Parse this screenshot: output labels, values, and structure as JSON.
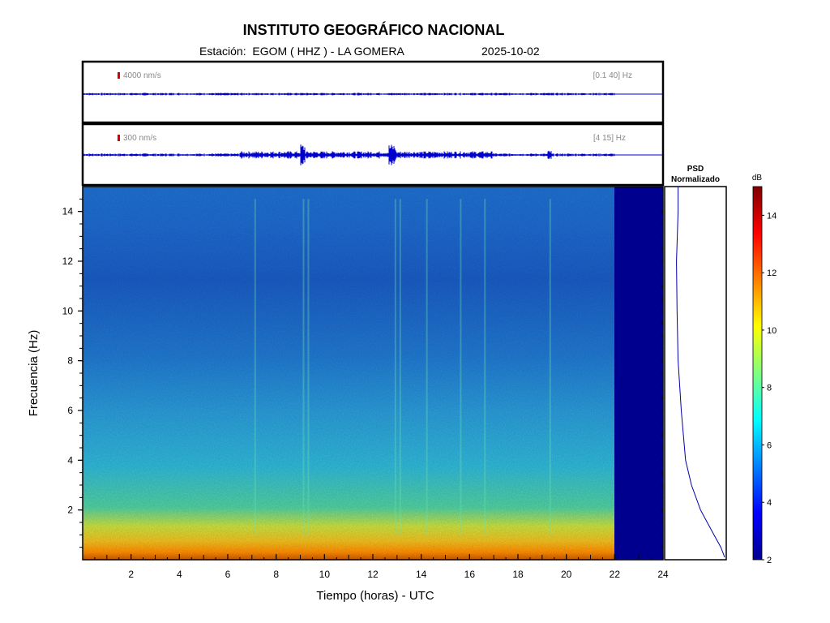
{
  "header": {
    "title": "INSTITUTO GEOGRÁFICO NACIONAL",
    "station": "Estación:  EGOM ( HHZ ) - LA GOMERA",
    "date": "2025-10-02"
  },
  "traces": [
    {
      "scale_label": "4000 nm/s",
      "band_label": "[0.1 40] Hz",
      "color": "#0000cc",
      "scale_bar_color": "#dd0000"
    },
    {
      "scale_label": "300 nm/s",
      "band_label": "[4 15] Hz",
      "color": "#0000cc",
      "scale_bar_color": "#dd0000"
    }
  ],
  "psd_panel": {
    "title_line1": "PSD",
    "title_line2": "Normalizado"
  },
  "colorbar": {
    "unit": "dB",
    "ticks": [
      "2",
      "4",
      "6",
      "8",
      "10",
      "12",
      "14"
    ],
    "range": [
      2,
      15
    ]
  },
  "chart_data": {
    "type": "heatmap",
    "title": "INSTITUTO GEOGRÁFICO NACIONAL",
    "xlabel": "Tiempo (horas) - UTC",
    "ylabel": "Frecuencia  (Hz)",
    "xlim": [
      0,
      24
    ],
    "ylim": [
      0,
      15
    ],
    "x_ticks": [
      2,
      4,
      6,
      8,
      10,
      12,
      14,
      16,
      18,
      20,
      22,
      24
    ],
    "y_ticks": [
      2,
      4,
      6,
      8,
      10,
      12,
      14
    ],
    "data_end_hour": 22,
    "colormap": "jet",
    "approx_db_by_frequency": [
      {
        "freq_hz": 0.3,
        "db": 11.5
      },
      {
        "freq_hz": 1,
        "db": 9.5
      },
      {
        "freq_hz": 2,
        "db": 8.0
      },
      {
        "freq_hz": 3,
        "db": 7.0
      },
      {
        "freq_hz": 4,
        "db": 6.6
      },
      {
        "freq_hz": 6,
        "db": 6.0
      },
      {
        "freq_hz": 8,
        "db": 5.3
      },
      {
        "freq_hz": 10,
        "db": 5.0
      },
      {
        "freq_hz": 12,
        "db": 4.6
      },
      {
        "freq_hz": 14,
        "db": 5.0
      }
    ],
    "psd_curve": [
      {
        "freq_hz": 0.1,
        "psd": 1.0
      },
      {
        "freq_hz": 0.5,
        "psd": 0.93
      },
      {
        "freq_hz": 1,
        "psd": 0.8
      },
      {
        "freq_hz": 2,
        "psd": 0.55
      },
      {
        "freq_hz": 3,
        "psd": 0.38
      },
      {
        "freq_hz": 4,
        "psd": 0.27
      },
      {
        "freq_hz": 6,
        "psd": 0.19
      },
      {
        "freq_hz": 8,
        "psd": 0.13
      },
      {
        "freq_hz": 10,
        "psd": 0.11
      },
      {
        "freq_hz": 12,
        "psd": 0.1
      },
      {
        "freq_hz": 14,
        "psd": 0.13
      },
      {
        "freq_hz": 15,
        "psd": 0.13
      }
    ]
  }
}
